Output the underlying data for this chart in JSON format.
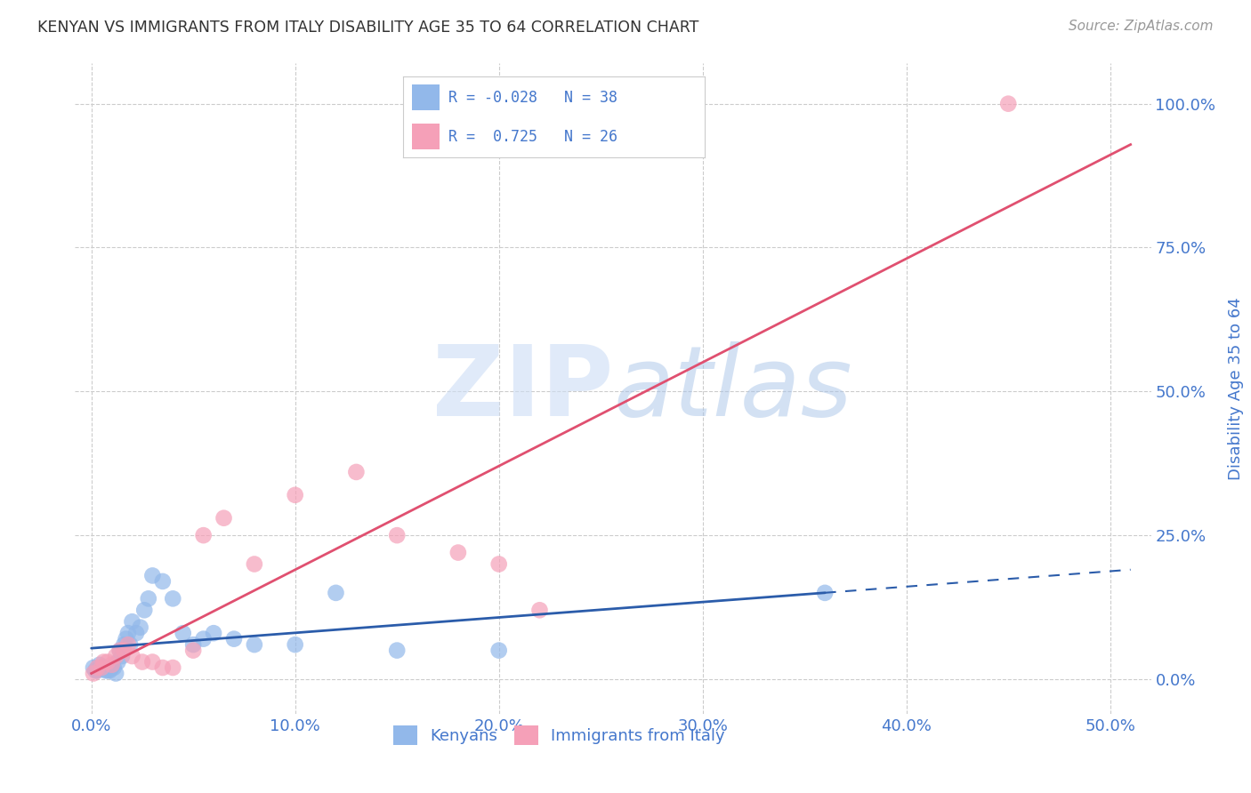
{
  "title": "KENYAN VS IMMIGRANTS FROM ITALY DISABILITY AGE 35 TO 64 CORRELATION CHART",
  "source": "Source: ZipAtlas.com",
  "ylabel_label": "Disability Age 35 to 64",
  "xlabel_vals": [
    0,
    10,
    20,
    30,
    40,
    50
  ],
  "ylabel_vals": [
    0,
    25,
    50,
    75,
    100
  ],
  "xlim": [
    -0.8,
    52
  ],
  "ylim": [
    -6,
    107
  ],
  "kenyan_R": -0.028,
  "kenyan_N": 38,
  "italy_R": 0.725,
  "italy_N": 26,
  "kenyan_color": "#92b8ea",
  "italy_color": "#f5a0b8",
  "kenyan_line_color": "#2b5caa",
  "italy_line_color": "#e05070",
  "bg_color": "#ffffff",
  "grid_color": "#cccccc",
  "axis_label_color": "#4477cc",
  "watermark_zip_color": "#ccddf5",
  "watermark_atlas_color": "#a8c4e8",
  "legend_kenyan_label": "Kenyans",
  "legend_italy_label": "Immigrants from Italy",
  "kenyan_x": [
    0.1,
    0.2,
    0.3,
    0.4,
    0.5,
    0.6,
    0.7,
    0.8,
    0.9,
    1.0,
    1.1,
    1.2,
    1.3,
    1.4,
    1.5,
    1.6,
    1.7,
    1.8,
    1.9,
    2.0,
    2.2,
    2.4,
    2.6,
    2.8,
    3.0,
    3.5,
    4.0,
    4.5,
    5.0,
    5.5,
    6.0,
    7.0,
    8.0,
    10.0,
    12.0,
    15.0,
    20.0,
    36.0
  ],
  "kenyan_y": [
    2.0,
    1.5,
    1.5,
    2.5,
    2.0,
    2.0,
    1.5,
    1.5,
    1.5,
    2.0,
    2.0,
    1.0,
    3.0,
    5.0,
    4.0,
    6.0,
    7.0,
    8.0,
    6.0,
    10.0,
    8.0,
    9.0,
    12.0,
    14.0,
    18.0,
    17.0,
    14.0,
    8.0,
    6.0,
    7.0,
    8.0,
    7.0,
    6.0,
    6.0,
    15.0,
    5.0,
    5.0,
    15.0
  ],
  "italy_x": [
    0.1,
    0.3,
    0.5,
    0.6,
    0.8,
    1.0,
    1.2,
    1.4,
    1.6,
    1.8,
    2.0,
    2.5,
    3.0,
    3.5,
    4.0,
    5.0,
    5.5,
    6.5,
    8.0,
    10.0,
    13.0,
    15.0,
    18.0,
    20.0,
    22.0,
    45.0
  ],
  "italy_y": [
    1.0,
    2.0,
    2.0,
    3.0,
    3.0,
    2.5,
    4.0,
    5.0,
    5.0,
    6.0,
    4.0,
    3.0,
    3.0,
    2.0,
    2.0,
    5.0,
    25.0,
    28.0,
    20.0,
    32.0,
    36.0,
    25.0,
    22.0,
    20.0,
    12.0,
    100.0
  ]
}
